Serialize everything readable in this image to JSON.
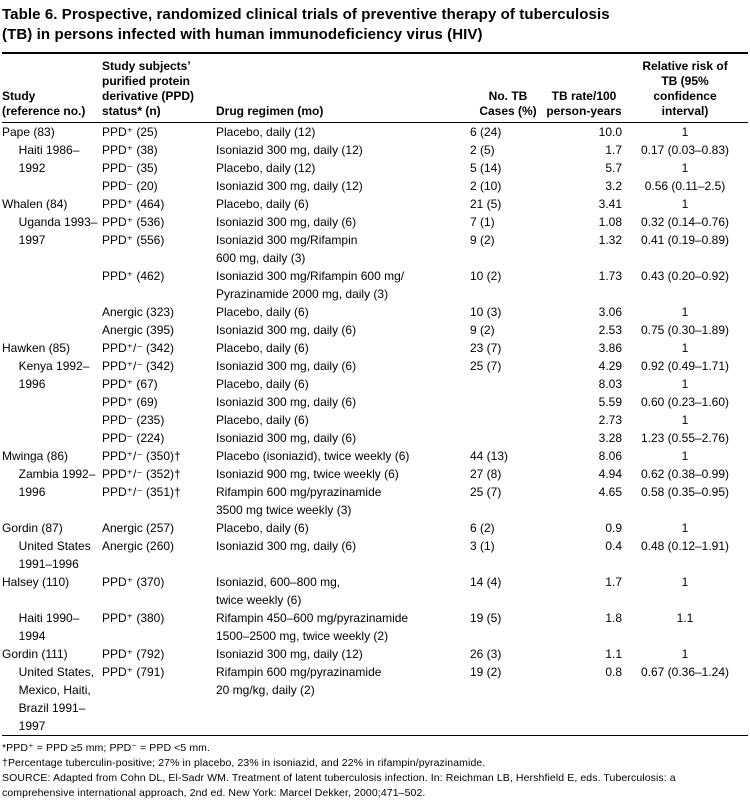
{
  "title": "Table 6. Prospective, randomized clinical trials of preventive therapy of tuberculosis\n(TB) in persons infected with human immunodeficiency virus (HIV)",
  "table": {
    "headers": [
      "Study\n(reference no.)",
      "Study subjects’\npurified protein\nderivative (PPD)\nstatus* (n)",
      "Drug regimen (mo)",
      "No. TB\nCases (%)",
      "TB rate/100\nperson-years",
      "Relative risk of\nTB (95%\nconfidence\ninterval)"
    ],
    "rows": [
      [
        "Pape (83)",
        "PPD⁺ (25)",
        "Placebo, daily (12)",
        "6 (24)",
        "10.0",
        "1"
      ],
      [
        "     Haiti 1986–",
        "PPD⁺ (38)",
        "Isoniazid 300 mg, daily (12)",
        "2 (5)",
        "1.7",
        "0.17 (0.03–0.83)"
      ],
      [
        "     1992",
        "PPD⁻ (35)",
        "Placebo, daily (12)",
        "5 (14)",
        "5.7",
        "1"
      ],
      [
        "",
        "PPD⁻ (20)",
        "Isoniazid 300 mg, daily (12)",
        "2 (10)",
        "3.2",
        "0.56 (0.11–2.5)"
      ],
      [
        "Whalen (84)",
        "PPD⁺ (464)",
        "Placebo, daily (6)",
        "21 (5)",
        "3.41",
        "1"
      ],
      [
        "     Uganda 1993–",
        "PPD⁺ (536)",
        "Isoniazid 300 mg, daily (6)",
        "7 (1)",
        "1.08",
        "0.32 (0.14–0.76)"
      ],
      [
        "     1997",
        "PPD⁺ (556)",
        "Isoniazid 300 mg/Rifampin",
        "9 (2)",
        "1.32",
        "0.41 (0.19–0.89)"
      ],
      [
        "",
        "",
        "600 mg, daily (3)",
        "",
        "",
        ""
      ],
      [
        "",
        "PPD⁺ (462)",
        "Isoniazid 300 mg/Rifampin 600 mg/",
        "10 (2)",
        "1.73",
        "0.43 (0.20–0.92)"
      ],
      [
        "",
        "",
        "Pyrazinamide 2000 mg, daily (3)",
        "",
        "",
        ""
      ],
      [
        "",
        "Anergic (323)",
        "Placebo, daily (6)",
        "10 (3)",
        "3.06",
        "1"
      ],
      [
        "",
        "Anergic (395)",
        "Isoniazid 300 mg, daily (6)",
        "9 (2)",
        "2.53",
        "0.75 (0.30–1.89)"
      ],
      [
        "Hawken (85)",
        "PPD⁺/⁻ (342)",
        "Placebo, daily (6)",
        "23 (7)",
        "3.86",
        "1"
      ],
      [
        "     Kenya 1992–",
        "PPD⁺/⁻ (342)",
        "Isoniazid 300 mg, daily (6)",
        "25 (7)",
        "4.29",
        "0.92 (0.49–1.71)"
      ],
      [
        "     1996",
        "PPD⁺ (67)",
        "Placebo, daily (6)",
        "",
        "8.03",
        "1"
      ],
      [
        "",
        "PPD⁺ (69)",
        "Isoniazid 300 mg, daily (6)",
        "",
        "5.59",
        "0.60 (0.23–1.60)"
      ],
      [
        "",
        "PPD⁻ (235)",
        "Placebo, daily (6)",
        "",
        "2.73",
        "1"
      ],
      [
        "",
        "PPD⁻ (224)",
        "Isoniazid 300 mg, daily (6)",
        "",
        "3.28",
        "1.23 (0.55–2.76)"
      ],
      [
        "Mwinga (86)",
        "PPD⁺/⁻ (350)†",
        "Placebo (isoniazid), twice weekly (6)",
        "44 (13)",
        "8.06",
        "1"
      ],
      [
        "     Zambia 1992–",
        "PPD⁺/⁻ (352)†",
        "Isoniazid 900 mg, twice weekly (6)",
        "27 (8)",
        "4.94",
        "0.62 (0.38–0.99)"
      ],
      [
        "     1996",
        "PPD⁺/⁻ (351)†",
        "Rifampin 600 mg/pyrazinamide",
        "25 (7)",
        "4.65",
        "0.58 (0.35–0.95)"
      ],
      [
        "",
        "",
        "3500 mg twice weekly (3)",
        "",
        "",
        ""
      ],
      [
        "Gordin (87)",
        "Anergic (257)",
        "Placebo, daily (6)",
        "6 (2)",
        "0.9",
        "1"
      ],
      [
        "     United States",
        "Anergic (260)",
        "Isoniazid 300 mg, daily (6)",
        "3 (1)",
        "0.4",
        "0.48 (0.12–1.91)"
      ],
      [
        "     1991–1996",
        "",
        "",
        "",
        "",
        ""
      ],
      [
        "Halsey (110)",
        "PPD⁺ (370)",
        "Isoniazid, 600–800 mg,",
        "14 (4)",
        "1.7",
        "1"
      ],
      [
        "",
        "",
        "twice weekly (6)",
        "",
        "",
        ""
      ],
      [
        "     Haiti 1990–",
        "PPD⁺ (380)",
        "Rifampin 450–600 mg/pyrazinamide",
        "19 (5)",
        "1.8",
        "1.1"
      ],
      [
        "     1994",
        "",
        "1500–2500 mg, twice weekly (2)",
        "",
        "",
        ""
      ],
      [
        "Gordin (111)",
        "PPD⁺ (792)",
        "Isoniazid 300 mg, daily (12)",
        "26 (3)",
        "1.1",
        "1"
      ],
      [
        "     United States,",
        "PPD⁺ (791)",
        "Rifampin 600 mg/pyrazinamide",
        "19 (2)",
        "0.8",
        "0.67 (0.36–1.24)"
      ],
      [
        "     Mexico, Haiti,",
        "",
        "20 mg/kg, daily (2)",
        "",
        "",
        ""
      ],
      [
        "     Brazil 1991–",
        "",
        "",
        "",
        "",
        ""
      ],
      [
        "     1997",
        "",
        "",
        "",
        "",
        ""
      ]
    ]
  },
  "footnotes": [
    "*PPD⁺ = PPD ≥5 mm; PPD⁻ = PPD <5 mm.",
    "†Percentage tuberculin-positive; 27% in placebo, 23% in isoniazid, and 22% in rifampin/pyrazinamide.",
    "SOURCE: Adapted from Cohn DL, El-Sadr WM. Treatment of latent tuberculosis infection. In: Reichman LB, Hershfield E, eds. Tuberculosis: a comprehensive international approach, 2nd ed. New York: Marcel Dekker, 2000;471–502."
  ]
}
